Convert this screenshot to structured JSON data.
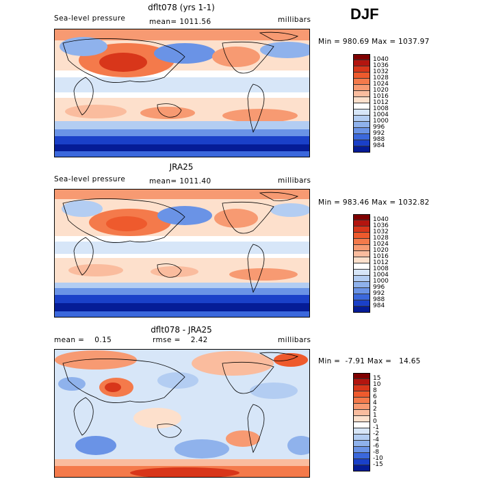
{
  "season": "DJF",
  "panels": [
    {
      "title": "dflt078 (yrs 1-1)",
      "left_label": "Sea-level pressure",
      "center_label": "mean= 1011.56",
      "right_label": "millibars",
      "minmax": "Min = 980.69 Max = 1037.97",
      "colorbar": {
        "levels": [
          "1040",
          "1036",
          "1032",
          "1028",
          "1024",
          "1020",
          "1016",
          "1012",
          "1008",
          "1004",
          "1000",
          "996",
          "992",
          "988",
          "984"
        ],
        "colors": [
          "#7f0000",
          "#b3150f",
          "#d8361a",
          "#ee5a2d",
          "#f47a4b",
          "#f79a72",
          "#fabc9e",
          "#fde0cc",
          "#ffffff",
          "#d7e6f8",
          "#b3cdf2",
          "#8fb2ec",
          "#6a93e6",
          "#3b68dc",
          "#1a40c8",
          "#051c96"
        ]
      }
    },
    {
      "title": "JRA25",
      "left_label": "Sea-level pressure",
      "center_label": "mean= 1011.40",
      "right_label": "millibars",
      "minmax": "Min = 983.46 Max = 1032.82",
      "colorbar": {
        "levels": [
          "1040",
          "1036",
          "1032",
          "1028",
          "1024",
          "1020",
          "1016",
          "1012",
          "1008",
          "1004",
          "1000",
          "996",
          "992",
          "988",
          "984"
        ],
        "colors": [
          "#7f0000",
          "#b3150f",
          "#d8361a",
          "#ee5a2d",
          "#f47a4b",
          "#f79a72",
          "#fabc9e",
          "#fde0cc",
          "#ffffff",
          "#d7e6f8",
          "#b3cdf2",
          "#8fb2ec",
          "#6a93e6",
          "#3b68dc",
          "#1a40c8",
          "#051c96"
        ]
      }
    },
    {
      "title": "dflt078 - JRA25",
      "left_label": "mean =    0.15",
      "center_label": "rmse =    2.42",
      "right_label": "millibars",
      "minmax": "Min =  -7.91 Max =   14.65",
      "colorbar": {
        "levels": [
          "15",
          "10",
          "8",
          "6",
          "4",
          "2",
          "1",
          "0",
          "-1",
          "-2",
          "-4",
          "-6",
          "-8",
          "-10",
          "-15"
        ],
        "colors": [
          "#7f0000",
          "#b3150f",
          "#d8361a",
          "#ee5a2d",
          "#f47a4b",
          "#f79a72",
          "#fabc9e",
          "#fde0cc",
          "#ffffff",
          "#d7e6f8",
          "#b3cdf2",
          "#8fb2ec",
          "#6a93e6",
          "#3b68dc",
          "#1a40c8",
          "#051c96"
        ]
      }
    }
  ],
  "chart_data": [
    {
      "type": "heatmap",
      "title": "dflt078 (yrs 1-1)",
      "variable": "Sea-level pressure",
      "units": "millibars",
      "mean": 1011.56,
      "min": 980.69,
      "max": 1037.97,
      "contour_levels": [
        984,
        988,
        992,
        996,
        1000,
        1004,
        1008,
        1012,
        1016,
        1020,
        1024,
        1028,
        1032,
        1036,
        1040
      ]
    },
    {
      "type": "heatmap",
      "title": "JRA25",
      "variable": "Sea-level pressure",
      "units": "millibars",
      "mean": 1011.4,
      "min": 983.46,
      "max": 1032.82,
      "contour_levels": [
        984,
        988,
        992,
        996,
        1000,
        1004,
        1008,
        1012,
        1016,
        1020,
        1024,
        1028,
        1032,
        1036,
        1040
      ]
    },
    {
      "type": "heatmap",
      "title": "dflt078 - JRA25",
      "units": "millibars",
      "mean": 0.15,
      "rmse": 2.42,
      "min": -7.91,
      "max": 14.65,
      "contour_levels": [
        -15,
        -10,
        -8,
        -6,
        -4,
        -2,
        -1,
        0,
        1,
        2,
        4,
        6,
        8,
        10,
        15
      ]
    }
  ]
}
